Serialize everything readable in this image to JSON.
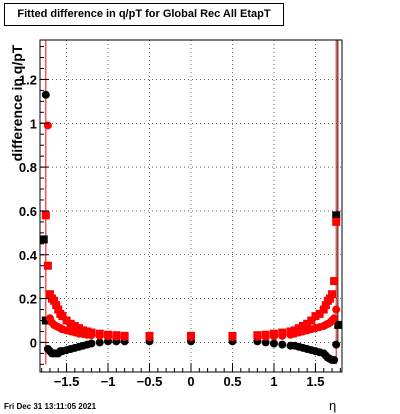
{
  "chart_data": {
    "type": "scatter",
    "title": "Fitted difference in q/pT for Global Rec All EtapT",
    "xlabel": "η",
    "ylabel": "difference in q/pT",
    "xlim": [
      -1.82,
      1.82
    ],
    "ylim": [
      -0.135,
      1.38
    ],
    "x_ticks": [
      -1.5,
      -1,
      -0.5,
      0,
      0.5,
      1,
      1.5
    ],
    "x_tick_labels": [
      "−1.5",
      "−1",
      "−0.5",
      "0",
      "0.5",
      "1",
      "1.5"
    ],
    "y_ticks": [
      0,
      0.2,
      0.4,
      0.6,
      0.8,
      1,
      1.2
    ],
    "y_tick_labels": [
      "0",
      "0.2",
      "0.4",
      "0.6",
      "0.8",
      "1",
      "1.2"
    ],
    "grid": true,
    "series": [
      {
        "color": "#000000",
        "marker": "circle",
        "x": [
          -1.75,
          -1.725,
          -1.7,
          -1.675,
          -1.65,
          -1.625,
          -1.6,
          -1.575,
          -1.55,
          -1.5,
          -1.45,
          -1.4,
          -1.35,
          -1.3,
          -1.25,
          -1.2,
          -1.1,
          -1.0,
          -0.9,
          -0.8,
          -0.5,
          0,
          0.5,
          0.8,
          0.9,
          1.0,
          1.1,
          1.2,
          1.25,
          1.3,
          1.35,
          1.4,
          1.45,
          1.5,
          1.55,
          1.6,
          1.625,
          1.65,
          1.675,
          1.7,
          1.725,
          1.75
        ],
        "y": [
          1.13,
          -0.03,
          -0.04,
          -0.05,
          -0.05,
          -0.05,
          -0.05,
          -0.04,
          -0.04,
          -0.035,
          -0.03,
          -0.025,
          -0.02,
          -0.015,
          -0.01,
          -0.005,
          0.0,
          0.005,
          0.005,
          0.005,
          0.005,
          0.005,
          0.005,
          0.005,
          0.0,
          -0.005,
          -0.01,
          -0.015,
          -0.015,
          -0.02,
          -0.025,
          -0.03,
          -0.035,
          -0.04,
          -0.045,
          -0.05,
          -0.06,
          -0.07,
          -0.075,
          -0.08,
          -0.08,
          -0.01
        ]
      },
      {
        "color": "#000000",
        "marker": "square",
        "x": [
          -1.775,
          -1.75,
          1.75,
          1.775
        ],
        "y": [
          0.47,
          0.1,
          0.58,
          0.08
        ]
      },
      {
        "color": "#ff0000",
        "marker": "circle",
        "x": [
          -1.725,
          -1.7,
          -1.675,
          -1.65,
          -1.625,
          -1.6,
          -1.575,
          -1.55,
          -1.5,
          -1.45,
          -1.4,
          -1.35,
          -1.3,
          -1.25,
          -1.2,
          -1.1,
          -1.0,
          -0.9,
          -0.8,
          -0.5,
          0,
          0.5,
          0.8,
          0.9,
          1.0,
          1.1,
          1.2,
          1.25,
          1.3,
          1.35,
          1.4,
          1.45,
          1.5,
          1.55,
          1.6,
          1.625,
          1.65,
          1.675,
          1.7,
          1.725,
          1.75
        ],
        "y": [
          0.99,
          0.11,
          0.09,
          0.08,
          0.075,
          0.07,
          0.065,
          0.06,
          0.055,
          0.05,
          0.045,
          0.04,
          0.038,
          0.035,
          0.033,
          0.03,
          0.028,
          0.026,
          0.025,
          0.024,
          0.024,
          0.024,
          0.025,
          0.026,
          0.028,
          0.03,
          0.035,
          0.04,
          0.045,
          0.05,
          0.055,
          0.06,
          0.065,
          0.07,
          0.075,
          0.08,
          0.085,
          0.09,
          0.1,
          0.11,
          0.15
        ]
      },
      {
        "color": "#ff0000",
        "marker": "square",
        "x": [
          -1.75,
          -1.725,
          -1.7,
          -1.675,
          -1.65,
          -1.625,
          -1.6,
          -1.575,
          -1.55,
          -1.5,
          -1.45,
          -1.4,
          -1.35,
          -1.3,
          -1.25,
          -1.2,
          -1.1,
          -1.0,
          -0.9,
          -0.8,
          -0.5,
          0,
          0.5,
          0.8,
          0.9,
          1.0,
          1.1,
          1.2,
          1.25,
          1.3,
          1.35,
          1.4,
          1.45,
          1.5,
          1.55,
          1.6,
          1.625,
          1.65,
          1.675,
          1.7,
          1.725,
          1.75
        ],
        "y": [
          0.58,
          0.35,
          0.22,
          0.2,
          0.19,
          0.17,
          0.15,
          0.13,
          0.12,
          0.1,
          0.085,
          0.075,
          0.065,
          0.055,
          0.05,
          0.045,
          0.04,
          0.035,
          0.033,
          0.03,
          0.03,
          0.03,
          0.03,
          0.033,
          0.035,
          0.04,
          0.045,
          0.05,
          0.055,
          0.065,
          0.075,
          0.085,
          0.1,
          0.12,
          0.13,
          0.15,
          0.17,
          0.19,
          0.2,
          0.22,
          0.28,
          0.55
        ]
      }
    ],
    "error_bars": [
      {
        "color": "#ff0000",
        "x": -1.75,
        "y_low": -0.1,
        "y_high": 1.38
      },
      {
        "color": "#ff0000",
        "x": 1.75,
        "y_low": -0.1,
        "y_high": 1.38
      },
      {
        "color": "#000000",
        "x": 1.77,
        "y_low": 0.0,
        "y_high": 1.38
      }
    ],
    "footer": "Fri Dec 31 13:11:05 2021"
  }
}
